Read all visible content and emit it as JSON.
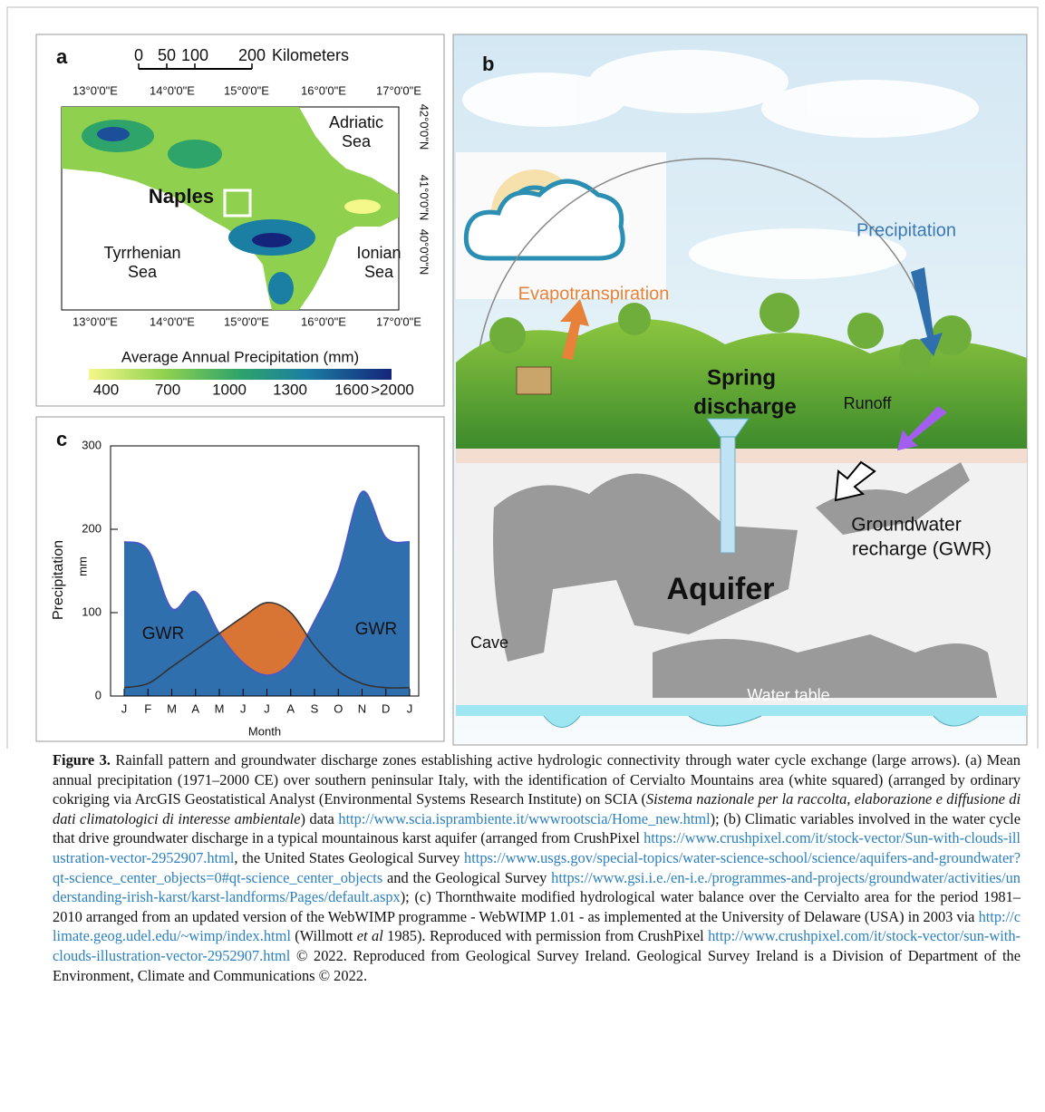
{
  "panel_a": {
    "label": "a",
    "scale_labels": [
      "0",
      "50",
      "100",
      "200"
    ],
    "scale_unit": "Kilometers",
    "lon_labels": [
      "13°0'0\"E",
      "14°0'0\"E",
      "15°0'0\"E",
      "16°0'0\"E",
      "17°0'0\"E"
    ],
    "lat_labels": [
      "42°0'0\"N",
      "41°0'0\"N",
      "40°0'0\"N"
    ],
    "places": [
      [
        "Adriatic",
        "Sea"
      ],
      [
        "Naples"
      ],
      [
        "Tyrrhenian",
        "Sea"
      ],
      [
        "Ionian",
        "Sea"
      ]
    ],
    "colorbar_title": "Average  Annual Precipitation (mm)",
    "colorbar_labels": [
      "400",
      "700",
      "1000",
      "1300",
      "1600",
      ">2000"
    ]
  },
  "panel_b": {
    "label": "b",
    "precipitation": "Precipitation",
    "evapotranspiration": "Evapotranspiration",
    "spring": [
      "Spring",
      "discharge"
    ],
    "runoff": "Runoff",
    "recharge": [
      "Groundwater",
      "recharge (GWR)"
    ],
    "aquifer": "Aquifer",
    "cave": "Cave",
    "water_table": "Water table"
  },
  "chart_data": {
    "type": "line",
    "panel_label": "c",
    "categories": [
      "J",
      "F",
      "M",
      "A",
      "M",
      "J",
      "J",
      "A",
      "S",
      "O",
      "N",
      "D",
      "J"
    ],
    "series": [
      {
        "color": "#2f6fae",
        "values": [
          185,
          175,
          105,
          125,
          75,
          40,
          25,
          40,
          90,
          150,
          245,
          190,
          185
        ]
      },
      {
        "color": "#d4661e",
        "values": [
          10,
          15,
          35,
          55,
          75,
          95,
          112,
          100,
          60,
          30,
          15,
          10,
          10
        ]
      }
    ],
    "ylim": [
      0,
      300
    ],
    "yticks": [
      0,
      100,
      200,
      300
    ],
    "ylabel": "Precipitation",
    "yunit": "mm",
    "xlabel": "Month",
    "annotations": [
      "GWR",
      "GWR"
    ]
  },
  "caption": [
    {
      "text": "Figure 3.",
      "style": "bold"
    },
    {
      "text": " Rainfall pattern and groundwater discharge zones establishing active hydrologic connectivity through water cycle exchange (large arrows). (a) Mean annual precipitation (1971–2000 CE) over southern peninsular Italy, with the identification of Cervialto Mountains area (white squared) (arranged by ordinary cokriging via ArcGIS Geostatistical Analyst (Environmental Systems Research Institute) on SCIA (",
      "style": "plain"
    },
    {
      "text": "Sistema nazionale per la raccolta, elaborazione e diffusione di dati climatologici di interesse ambientale",
      "style": "italic"
    },
    {
      "text": ") data ",
      "style": "plain"
    },
    {
      "text": "http://www.scia.isprambiente.it/wwwrootscia/Home_new.html",
      "style": "link"
    },
    {
      "text": "); (b) Climatic variables involved in the water cycle that drive groundwater discharge in a typical mountainous karst aquifer (arranged from CrushPixel ",
      "style": "plain"
    },
    {
      "text": "https://www.crushpixel.com/it/stock-vector/Sun-with-clouds-illustration-vector-2952907.html",
      "style": "link"
    },
    {
      "text": ", the United States Geological Survey ",
      "style": "plain"
    },
    {
      "text": "https://www.usgs.gov/special-topics/water-science-school/science/aquifers-and-groundwater?qt-science_center_objects=0#qt-science_center_objects",
      "style": "link"
    },
    {
      "text": " and the Geological Survey ",
      "style": "plain"
    },
    {
      "text": "https://www.gsi.i.e./en-i.e./programmes-and-projects/groundwater/activities/understanding-irish-karst/karst-landforms/Pages/default.aspx",
      "style": "link"
    },
    {
      "text": "); (c) Thornthwaite modified hydrological water balance over the Cervialto area for the period 1981–2010 arranged from an updated version of the WebWIMP programme - WebWIMP 1.01 - as implemented at the University of Delaware (USA) in 2003 via ",
      "style": "plain"
    },
    {
      "text": "http://climate.geog.udel.edu/~wimp/index.html",
      "style": "link"
    },
    {
      "text": " (Willmott ",
      "style": "plain"
    },
    {
      "text": "et al",
      "style": "italic"
    },
    {
      "text": " 1985). Reproduced with permission from CrushPixel ",
      "style": "plain"
    },
    {
      "text": "http://www.crushpixel.com/it/stock-vector/sun-with-clouds-illustration-vector-2952907.html",
      "style": "link"
    },
    {
      "text": " © 2022. Reproduced from Geological Survey Ireland. Geological Survey Ireland is a Division of Department of the Environment, Climate and Communications © 2022.",
      "style": "plain"
    }
  ]
}
